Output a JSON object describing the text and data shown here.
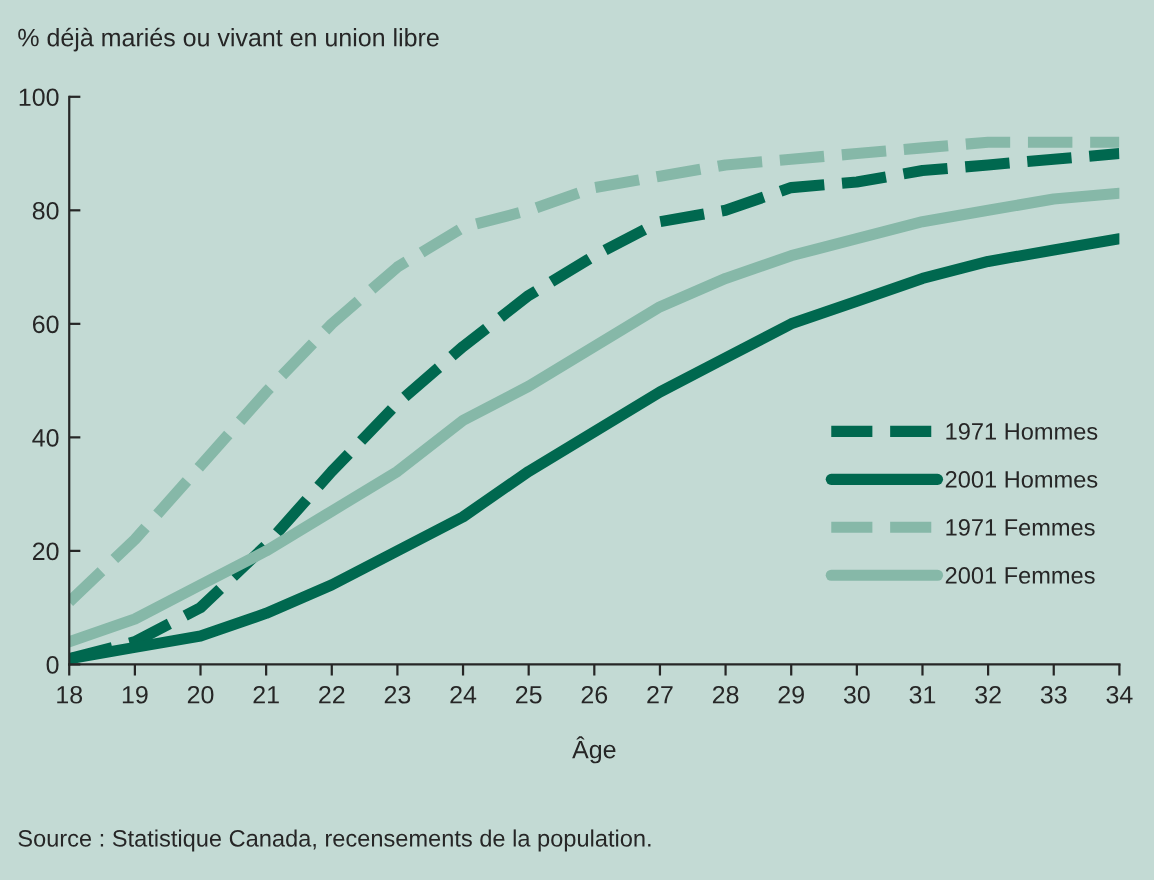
{
  "chart_data": {
    "type": "line",
    "ylabel": "% déjà mariés ou vivant en union libre",
    "xlabel": "Âge",
    "annotations": [
      "Source : Statistique Canada, recensements de la population."
    ],
    "x": [
      18,
      19,
      20,
      21,
      22,
      23,
      24,
      25,
      26,
      27,
      28,
      29,
      30,
      31,
      32,
      33,
      34
    ],
    "series": [
      {
        "name": "1971 Hommes",
        "color": "#00684f",
        "line_style": "dashed",
        "values": [
          1,
          4,
          10,
          21,
          34,
          46,
          56,
          65,
          72,
          78,
          80,
          84,
          85,
          87,
          88,
          89,
          90
        ]
      },
      {
        "name": "2001 Hommes",
        "color": "#00684f",
        "line_style": "solid",
        "values": [
          1,
          3,
          5,
          9,
          14,
          20,
          26,
          34,
          41,
          48,
          54,
          60,
          64,
          68,
          71,
          73,
          75
        ]
      },
      {
        "name": "1971 Femmes",
        "color": "#86b8a8",
        "line_style": "dashed",
        "values": [
          11,
          22,
          35,
          48,
          60,
          70,
          77,
          80,
          84,
          86,
          88,
          89,
          90,
          91,
          92,
          92,
          92
        ]
      },
      {
        "name": "2001 Femmes",
        "color": "#86b8a8",
        "line_style": "solid",
        "values": [
          4,
          8,
          14,
          20,
          27,
          34,
          43,
          49,
          56,
          63,
          68,
          72,
          75,
          78,
          80,
          82,
          83
        ]
      }
    ],
    "xlim": [
      18,
      34
    ],
    "ylim": [
      0,
      100
    ],
    "xticks": [
      18,
      19,
      20,
      21,
      22,
      23,
      24,
      25,
      26,
      27,
      28,
      29,
      30,
      31,
      32,
      33,
      34
    ],
    "yticks": [
      0,
      20,
      40,
      60,
      80,
      100
    ],
    "grid": false,
    "legend": "right",
    "marker": "none"
  }
}
